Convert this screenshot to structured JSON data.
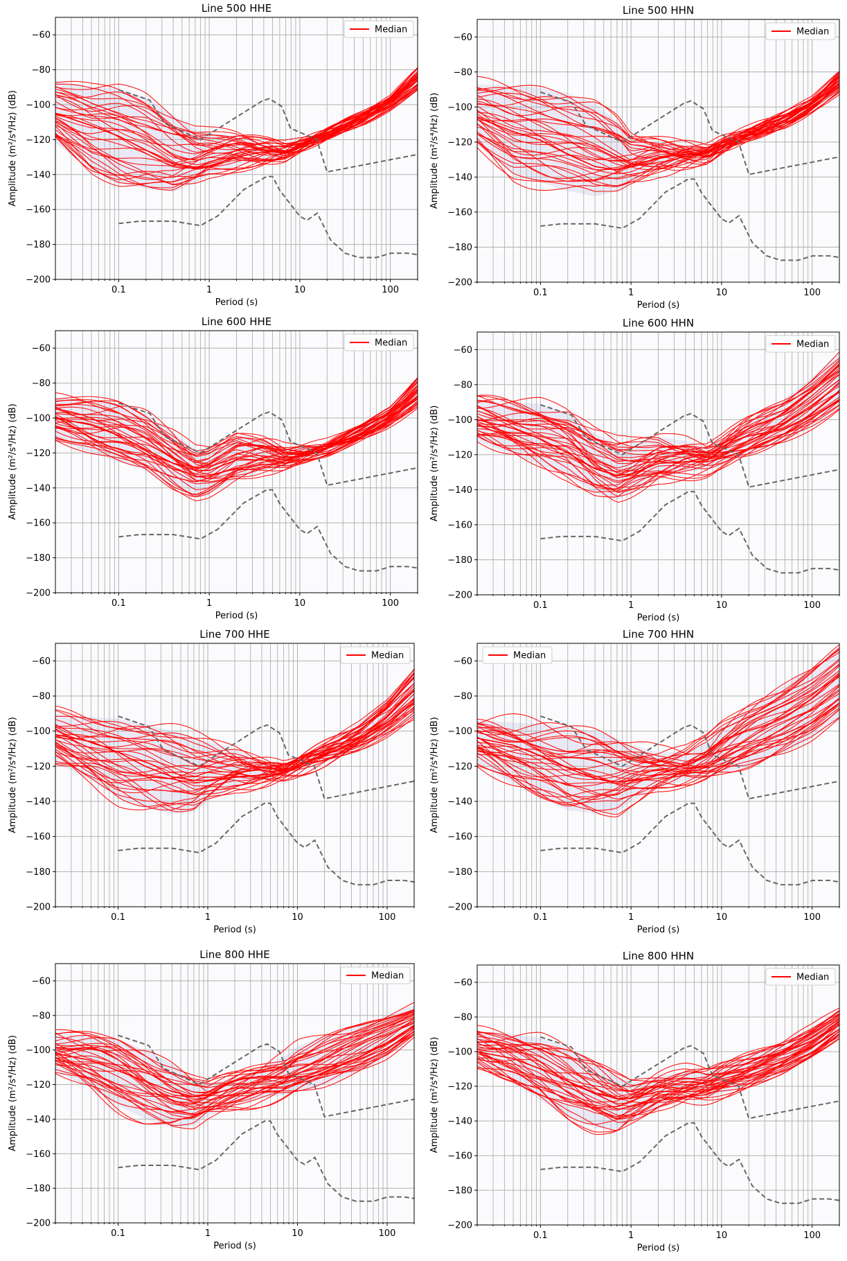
{
  "xlabel": "Period (s)",
  "ylabel": "Amplitude (m²/s⁴/Hz) (dB)",
  "legend_label": "Median",
  "colors": {
    "psd_lines": "#ff0000",
    "noise_model": "#666666",
    "grid": "#b0b0b0",
    "density": "#c8c8e6"
  },
  "chart_data": [
    {
      "type": "line",
      "title": "Line 500 HHE",
      "xscale": "log",
      "xlim": [
        0.02,
        200
      ],
      "ylim": [
        -200,
        -50
      ],
      "xticks": [
        0.1,
        1,
        10,
        100
      ],
      "xtick_labels": [
        "0.1",
        "1",
        "10",
        "100"
      ],
      "yticks": [
        -60,
        -80,
        -100,
        -120,
        -140,
        -160,
        -180,
        -200
      ],
      "ytick_labels": [
        "−60",
        "−80",
        "−100",
        "−120",
        "−140",
        "−160",
        "−180",
        "−200"
      ],
      "grid": true,
      "legend_position": "upper right",
      "x": [
        0.02,
        0.05,
        0.1,
        0.2,
        0.4,
        0.7,
        1,
        2,
        4,
        7,
        10,
        20,
        50,
        100,
        200
      ],
      "band": {
        "low": [
          -122,
          -138,
          -145,
          -148,
          -150,
          -145,
          -140,
          -135,
          -132,
          -130,
          -125,
          -118,
          -110,
          -102,
          -92
        ],
        "high": [
          -86,
          -90,
          -91,
          -96,
          -106,
          -114,
          -116,
          -118,
          -122,
          -124,
          -122,
          -115,
          -105,
          -96,
          -79
        ]
      },
      "median": [
        -105,
        -112,
        -118,
        -126,
        -134,
        -136,
        -135,
        -130,
        -127,
        -127,
        -124,
        -116,
        -106,
        -98,
        -86
      ]
    },
    {
      "type": "line",
      "title": "Line 500 HHN",
      "xscale": "log",
      "xlim": [
        0.02,
        200
      ],
      "ylim": [
        -200,
        -50
      ],
      "xticks": [
        0.1,
        1,
        10,
        100
      ],
      "xtick_labels": [
        "0.1",
        "1",
        "10",
        "100"
      ],
      "yticks": [
        -60,
        -80,
        -100,
        -120,
        -140,
        -160,
        -180,
        -200
      ],
      "ytick_labels": [
        "−60",
        "−80",
        "−100",
        "−120",
        "−140",
        "−160",
        "−180",
        "−200"
      ],
      "grid": true,
      "legend_position": "upper right",
      "x": [
        0.02,
        0.05,
        0.1,
        0.2,
        0.4,
        0.7,
        1,
        2,
        4,
        7,
        10,
        20,
        50,
        100,
        200
      ],
      "band": {
        "low": [
          -122,
          -138,
          -143,
          -148,
          -151,
          -148,
          -142,
          -135,
          -132,
          -130,
          -125,
          -118,
          -110,
          -102,
          -92
        ],
        "high": [
          -87,
          -88,
          -89,
          -92,
          -98,
          -108,
          -118,
          -120,
          -122,
          -124,
          -120,
          -114,
          -104,
          -95,
          -79
        ]
      },
      "median": [
        -106,
        -114,
        -119,
        -127,
        -134,
        -136,
        -134,
        -129,
        -127,
        -126,
        -122,
        -115,
        -106,
        -98,
        -87
      ]
    },
    {
      "type": "line",
      "title": "Line 600 HHE",
      "xscale": "log",
      "xlim": [
        0.02,
        200
      ],
      "ylim": [
        -200,
        -50
      ],
      "xticks": [
        0.1,
        1,
        10,
        100
      ],
      "xtick_labels": [
        "0.1",
        "1",
        "10",
        "100"
      ],
      "yticks": [
        -60,
        -80,
        -100,
        -120,
        -140,
        -160,
        -180,
        -200
      ],
      "ytick_labels": [
        "−60",
        "−80",
        "−100",
        "−120",
        "−140",
        "−160",
        "−180",
        "−200"
      ],
      "grid": true,
      "legend_position": "upper right",
      "x": [
        0.02,
        0.05,
        0.1,
        0.2,
        0.4,
        0.7,
        1,
        2,
        4,
        7,
        10,
        20,
        50,
        100,
        200
      ],
      "band": {
        "low": [
          -112,
          -120,
          -125,
          -130,
          -140,
          -145,
          -143,
          -135,
          -130,
          -128,
          -125,
          -120,
          -112,
          -104,
          -94
        ],
        "high": [
          -88,
          -90,
          -92,
          -98,
          -108,
          -118,
          -118,
          -110,
          -112,
          -117,
          -117,
          -114,
          -104,
          -94,
          -76
        ]
      },
      "median": [
        -100,
        -104,
        -110,
        -118,
        -126,
        -130,
        -130,
        -124,
        -124,
        -124,
        -122,
        -117,
        -108,
        -99,
        -89
      ]
    },
    {
      "type": "line",
      "title": "Line 600 HHN",
      "xscale": "log",
      "xlim": [
        0.02,
        200
      ],
      "ylim": [
        -200,
        -50
      ],
      "xticks": [
        0.1,
        1,
        10,
        100
      ],
      "xtick_labels": [
        "0.1",
        "1",
        "10",
        "100"
      ],
      "yticks": [
        -60,
        -80,
        -100,
        -120,
        -140,
        -160,
        -180,
        -200
      ],
      "ytick_labels": [
        "−60",
        "−80",
        "−100",
        "−120",
        "−140",
        "−160",
        "−180",
        "−200"
      ],
      "grid": true,
      "legend_position": "upper right",
      "x": [
        0.02,
        0.05,
        0.1,
        0.2,
        0.4,
        0.7,
        1,
        2,
        4,
        7,
        10,
        20,
        50,
        100,
        200
      ],
      "band": {
        "low": [
          -112,
          -120,
          -126,
          -132,
          -142,
          -146,
          -142,
          -134,
          -130,
          -128,
          -125,
          -120,
          -112,
          -104,
          -94
        ],
        "high": [
          -89,
          -90,
          -91,
          -96,
          -108,
          -114,
          -114,
          -110,
          -112,
          -116,
          -112,
          -100,
          -88,
          -76,
          -62
        ]
      },
      "median": [
        -100,
        -105,
        -111,
        -119,
        -128,
        -132,
        -131,
        -125,
        -124,
        -124,
        -122,
        -117,
        -108,
        -99,
        -89
      ]
    },
    {
      "type": "line",
      "title": "Line 700 HHE",
      "xscale": "log",
      "xlim": [
        0.02,
        200
      ],
      "ylim": [
        -200,
        -50
      ],
      "xticks": [
        0.1,
        1,
        10,
        100
      ],
      "xtick_labels": [
        "0.1",
        "1",
        "10",
        "100"
      ],
      "yticks": [
        -60,
        -80,
        -100,
        -120,
        -140,
        -160,
        -180,
        -200
      ],
      "ytick_labels": [
        "−60",
        "−80",
        "−100",
        "−120",
        "−140",
        "−160",
        "−180",
        "−200"
      ],
      "grid": true,
      "legend_position": "upper right",
      "x": [
        0.02,
        0.05,
        0.1,
        0.2,
        0.4,
        0.7,
        1,
        2,
        4,
        7,
        10,
        20,
        50,
        100,
        200
      ],
      "band": {
        "low": [
          -118,
          -128,
          -138,
          -144,
          -147,
          -146,
          -140,
          -132,
          -128,
          -125,
          -123,
          -118,
          -110,
          -102,
          -92
        ],
        "high": [
          -90,
          -92,
          -93,
          -96,
          -100,
          -104,
          -106,
          -110,
          -117,
          -122,
          -118,
          -108,
          -95,
          -82,
          -64
        ]
      },
      "median": [
        -102,
        -106,
        -112,
        -120,
        -126,
        -128,
        -128,
        -126,
        -125,
        -124,
        -120,
        -114,
        -104,
        -95,
        -84
      ]
    },
    {
      "type": "line",
      "title": "Line 700 HHN",
      "xscale": "log",
      "xlim": [
        0.02,
        200
      ],
      "ylim": [
        -200,
        -50
      ],
      "xticks": [
        0.1,
        1,
        10,
        100
      ],
      "xtick_labels": [
        "0.1",
        "1",
        "10",
        "100"
      ],
      "yticks": [
        -60,
        -80,
        -100,
        -120,
        -140,
        -160,
        -180,
        -200
      ],
      "ytick_labels": [
        "−60",
        "−80",
        "−100",
        "−120",
        "−140",
        "−160",
        "−180",
        "−200"
      ],
      "grid": true,
      "legend_position": "upper left",
      "x": [
        0.02,
        0.05,
        0.1,
        0.2,
        0.4,
        0.7,
        1,
        2,
        4,
        7,
        10,
        20,
        50,
        100,
        200
      ],
      "band": {
        "low": [
          -118,
          -130,
          -138,
          -145,
          -147,
          -146,
          -140,
          -132,
          -128,
          -126,
          -124,
          -120,
          -112,
          -104,
          -92
        ],
        "high": [
          -94,
          -95,
          -96,
          -98,
          -100,
          -104,
          -108,
          -112,
          -112,
          -106,
          -98,
          -86,
          -74,
          -64,
          -52
        ]
      },
      "median": [
        -104,
        -108,
        -114,
        -121,
        -127,
        -129,
        -128,
        -125,
        -124,
        -123,
        -120,
        -114,
        -104,
        -95,
        -84
      ]
    },
    {
      "type": "line",
      "title": "Line 800 HHE",
      "xscale": "log",
      "xlim": [
        0.02,
        200
      ],
      "ylim": [
        -200,
        -50
      ],
      "xticks": [
        0.1,
        1,
        10,
        100
      ],
      "xtick_labels": [
        "0.1",
        "1",
        "10",
        "100"
      ],
      "yticks": [
        -60,
        -80,
        -100,
        -120,
        -140,
        -160,
        -180,
        -200
      ],
      "ytick_labels": [
        "−60",
        "−80",
        "−100",
        "−120",
        "−140",
        "−160",
        "−180",
        "−200"
      ],
      "grid": true,
      "legend_position": "upper right",
      "x": [
        0.02,
        0.05,
        0.1,
        0.2,
        0.4,
        0.7,
        1,
        2,
        4,
        7,
        10,
        20,
        50,
        100,
        200
      ],
      "band": {
        "low": [
          -112,
          -122,
          -132,
          -140,
          -145,
          -144,
          -138,
          -132,
          -128,
          -126,
          -124,
          -120,
          -112,
          -104,
          -92
        ],
        "high": [
          -90,
          -92,
          -94,
          -100,
          -108,
          -116,
          -120,
          -116,
          -110,
          -104,
          -98,
          -92,
          -86,
          -80,
          -74
        ]
      },
      "median": [
        -102,
        -106,
        -112,
        -118,
        -124,
        -127,
        -126,
        -122,
        -122,
        -122,
        -119,
        -113,
        -104,
        -96,
        -86
      ]
    },
    {
      "type": "line",
      "title": "Line 800 HHN",
      "xscale": "log",
      "xlim": [
        0.02,
        200
      ],
      "ylim": [
        -200,
        -50
      ],
      "xticks": [
        0.1,
        1,
        10,
        100
      ],
      "xtick_labels": [
        "0.1",
        "1",
        "10",
        "100"
      ],
      "yticks": [
        -60,
        -80,
        -100,
        -120,
        -140,
        -160,
        -180,
        -200
      ],
      "ytick_labels": [
        "−60",
        "−80",
        "−100",
        "−120",
        "−140",
        "−160",
        "−180",
        "−200"
      ],
      "grid": true,
      "legend_position": "upper right",
      "x": [
        0.02,
        0.05,
        0.1,
        0.2,
        0.4,
        0.7,
        1,
        2,
        4,
        7,
        10,
        20,
        50,
        100,
        200
      ],
      "band": {
        "low": [
          -108,
          -118,
          -128,
          -138,
          -144,
          -145,
          -140,
          -132,
          -128,
          -126,
          -124,
          -120,
          -112,
          -104,
          -92
        ],
        "high": [
          -88,
          -90,
          -92,
          -98,
          -106,
          -114,
          -118,
          -114,
          -112,
          -112,
          -108,
          -102,
          -94,
          -86,
          -76
        ]
      },
      "median": [
        -100,
        -104,
        -110,
        -117,
        -124,
        -127,
        -127,
        -123,
        -123,
        -123,
        -120,
        -114,
        -105,
        -97,
        -87
      ]
    }
  ],
  "noise_models": {
    "high": {
      "x": [
        0.1,
        0.22,
        0.32,
        0.8,
        3.8,
        4.6,
        6.3,
        7.9,
        15.4,
        20,
        354.8
      ],
      "y": [
        -91.5,
        -97.4,
        -110.5,
        -120.0,
        -98.0,
        -96.5,
        -101.0,
        -113.5,
        -120.0,
        -138.5,
        -126.0
      ]
    },
    "low": {
      "x": [
        0.1,
        0.17,
        0.4,
        0.8,
        1.24,
        2.4,
        4.3,
        5.0,
        6.0,
        10.0,
        12.0,
        15.6,
        21.9,
        31.6,
        45.0,
        70.0,
        101.0,
        154.0,
        328.0
      ],
      "y": [
        -168.0,
        -166.7,
        -166.7,
        -169.2,
        -163.7,
        -148.6,
        -141.1,
        -141.1,
        -149.0,
        -163.8,
        -166.2,
        -162.1,
        -177.5,
        -185.0,
        -187.5,
        -187.5,
        -185.0,
        -185.0,
        -187.5
      ]
    }
  }
}
